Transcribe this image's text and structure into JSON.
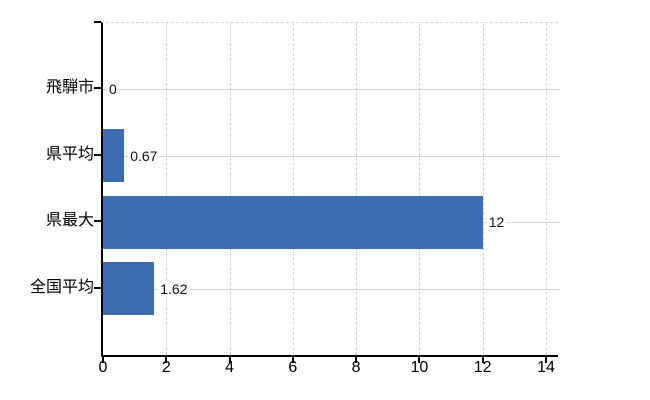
{
  "chart_data": {
    "type": "bar",
    "orientation": "horizontal",
    "title": "",
    "xlabel": "",
    "ylabel": "",
    "categories": [
      "飛騨市",
      "県平均",
      "県最大",
      "全国平均"
    ],
    "values": [
      0,
      0.67,
      12,
      1.62
    ],
    "value_labels": [
      "0",
      "0.67",
      "12",
      "1.62"
    ],
    "x_ticks": [
      0,
      2,
      4,
      6,
      8,
      10,
      12,
      14
    ],
    "x_tick_labels": [
      "0",
      "2",
      "4",
      "6",
      "8",
      "10",
      "12",
      "14"
    ],
    "xlim": [
      0,
      14.38
    ],
    "grid": "on",
    "legend": "none",
    "colors": {
      "bar": "#3c6dae",
      "grid": "#d4d4d4",
      "axis": "#000000",
      "text": "#000000",
      "background": "#ffffff"
    }
  }
}
